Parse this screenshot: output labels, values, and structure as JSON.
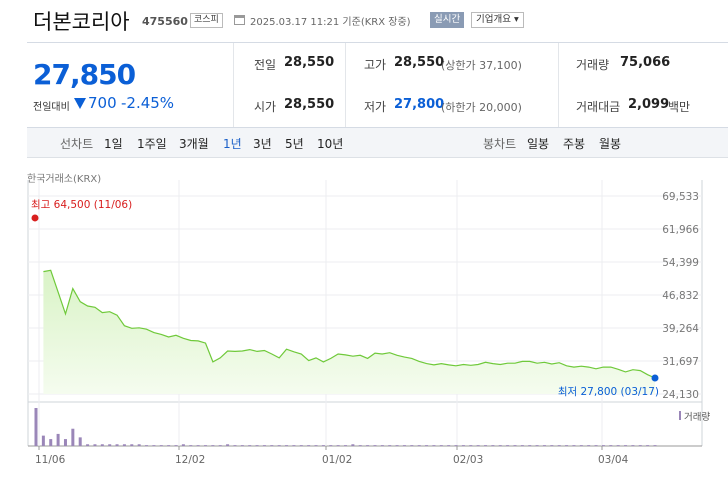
{
  "header": {
    "name": "더본코리아",
    "code": "475560",
    "market": "코스피",
    "datetime": "2025.03.17 11:21 기준(KRX 장중)",
    "realtime": "실시간",
    "company_info": "기업개요 ▾"
  },
  "quote": {
    "price": "27,850",
    "change_label": "전일대비",
    "change": "700",
    "change_pct": "-2.45%",
    "prev_close_label": "전일",
    "prev_close": "28,550",
    "open_label": "시가",
    "open": "28,550",
    "high_label": "고가",
    "high": "28,550",
    "upper_limit": "(상한가 37,100)",
    "low_label": "저가",
    "low": "27,800",
    "lower_limit": "(하한가 20,000)",
    "volume_label": "거래량",
    "volume": "75,066",
    "amount_label": "거래대금",
    "amount": "2,099",
    "amount_unit": "백만"
  },
  "ranges": {
    "line_title": "선차트",
    "line_items": [
      "1일",
      "1주일",
      "3개월",
      "1년",
      "3년",
      "5년",
      "10년"
    ],
    "selected": "1년",
    "candle_title": "봉차트",
    "candle_items": [
      "일봉",
      "주봉",
      "월봉"
    ]
  },
  "chart_data": {
    "type": "area",
    "source": "한국거래소(KRX)",
    "y_ticks": [
      "69,533",
      "61,966",
      "54,399",
      "46,832",
      "39,264",
      "31,697",
      "24,130"
    ],
    "ylim": [
      24130,
      69533
    ],
    "x_ticks": [
      "11/06",
      "12/02",
      "01/02",
      "02/03",
      "03/04"
    ],
    "high_label": "최고 64,500 (11/06)",
    "low_label": "최저 27,800 (03/17)",
    "volume_legend": "거래량",
    "series": [
      {
        "values": [
          64500,
          52200,
          52500,
          47500,
          42500,
          48300,
          45300,
          44300,
          44000,
          42800,
          43000,
          42200,
          39800,
          39200,
          39300,
          39000,
          38200,
          37800,
          37200,
          37600,
          36900,
          36400,
          36300,
          35800,
          31500,
          32400,
          34000,
          33900,
          34000,
          34300,
          33900,
          34100,
          33300,
          32400,
          34400,
          33800,
          33300,
          31800,
          32400,
          31500,
          32300,
          33300,
          33100,
          32800,
          33000,
          32300,
          33500,
          33300,
          33600,
          33000,
          32600,
          32300,
          31600,
          31100,
          30800,
          31100,
          30800,
          30600,
          30900,
          30700,
          30900,
          31400,
          31100,
          30900,
          31200,
          31200,
          31600,
          31600,
          31200,
          31400,
          31000,
          31300,
          30600,
          30300,
          30500,
          30300,
          29900,
          30300,
          30300,
          29800,
          29200,
          29700,
          29500,
          28550,
          27800
        ]
      }
    ],
    "volume": [
      22,
      6,
      4,
      7,
      4,
      10,
      5,
      1,
      1,
      1,
      1,
      1,
      1,
      1,
      1,
      0.5,
      0.5,
      0.5,
      0.5,
      0.5,
      1,
      0.5,
      0.5,
      0.5,
      0.5,
      0.5,
      1,
      0.5,
      0.5,
      0.5,
      0.5,
      0.5,
      0.5,
      0.5,
      0.5,
      0.5,
      0.5,
      0.5,
      0.5,
      0.5,
      0.5,
      0.5,
      0.5,
      1,
      0.5,
      0.5,
      0.5,
      0.5,
      0.5,
      0.5,
      0.5,
      0.5,
      0.5,
      0.5,
      0.5,
      0.5,
      0.5,
      0.5,
      0.5,
      0.5,
      0.5,
      0.5,
      0.5,
      0.5,
      0.5,
      0.5,
      0.5,
      0.5,
      0.5,
      0.5,
      0.5,
      0.5,
      0.5,
      0.5,
      0.5,
      0.5,
      0.5,
      0.5,
      0.5,
      0.5,
      0.5,
      0.5,
      0.5,
      0.5,
      0.5
    ],
    "colors": {
      "line": "#6fc93a",
      "fill": "#e6f7d9",
      "high": "#d81e1e",
      "low": "#0b5fd6",
      "volume": "#9a86b8"
    }
  }
}
